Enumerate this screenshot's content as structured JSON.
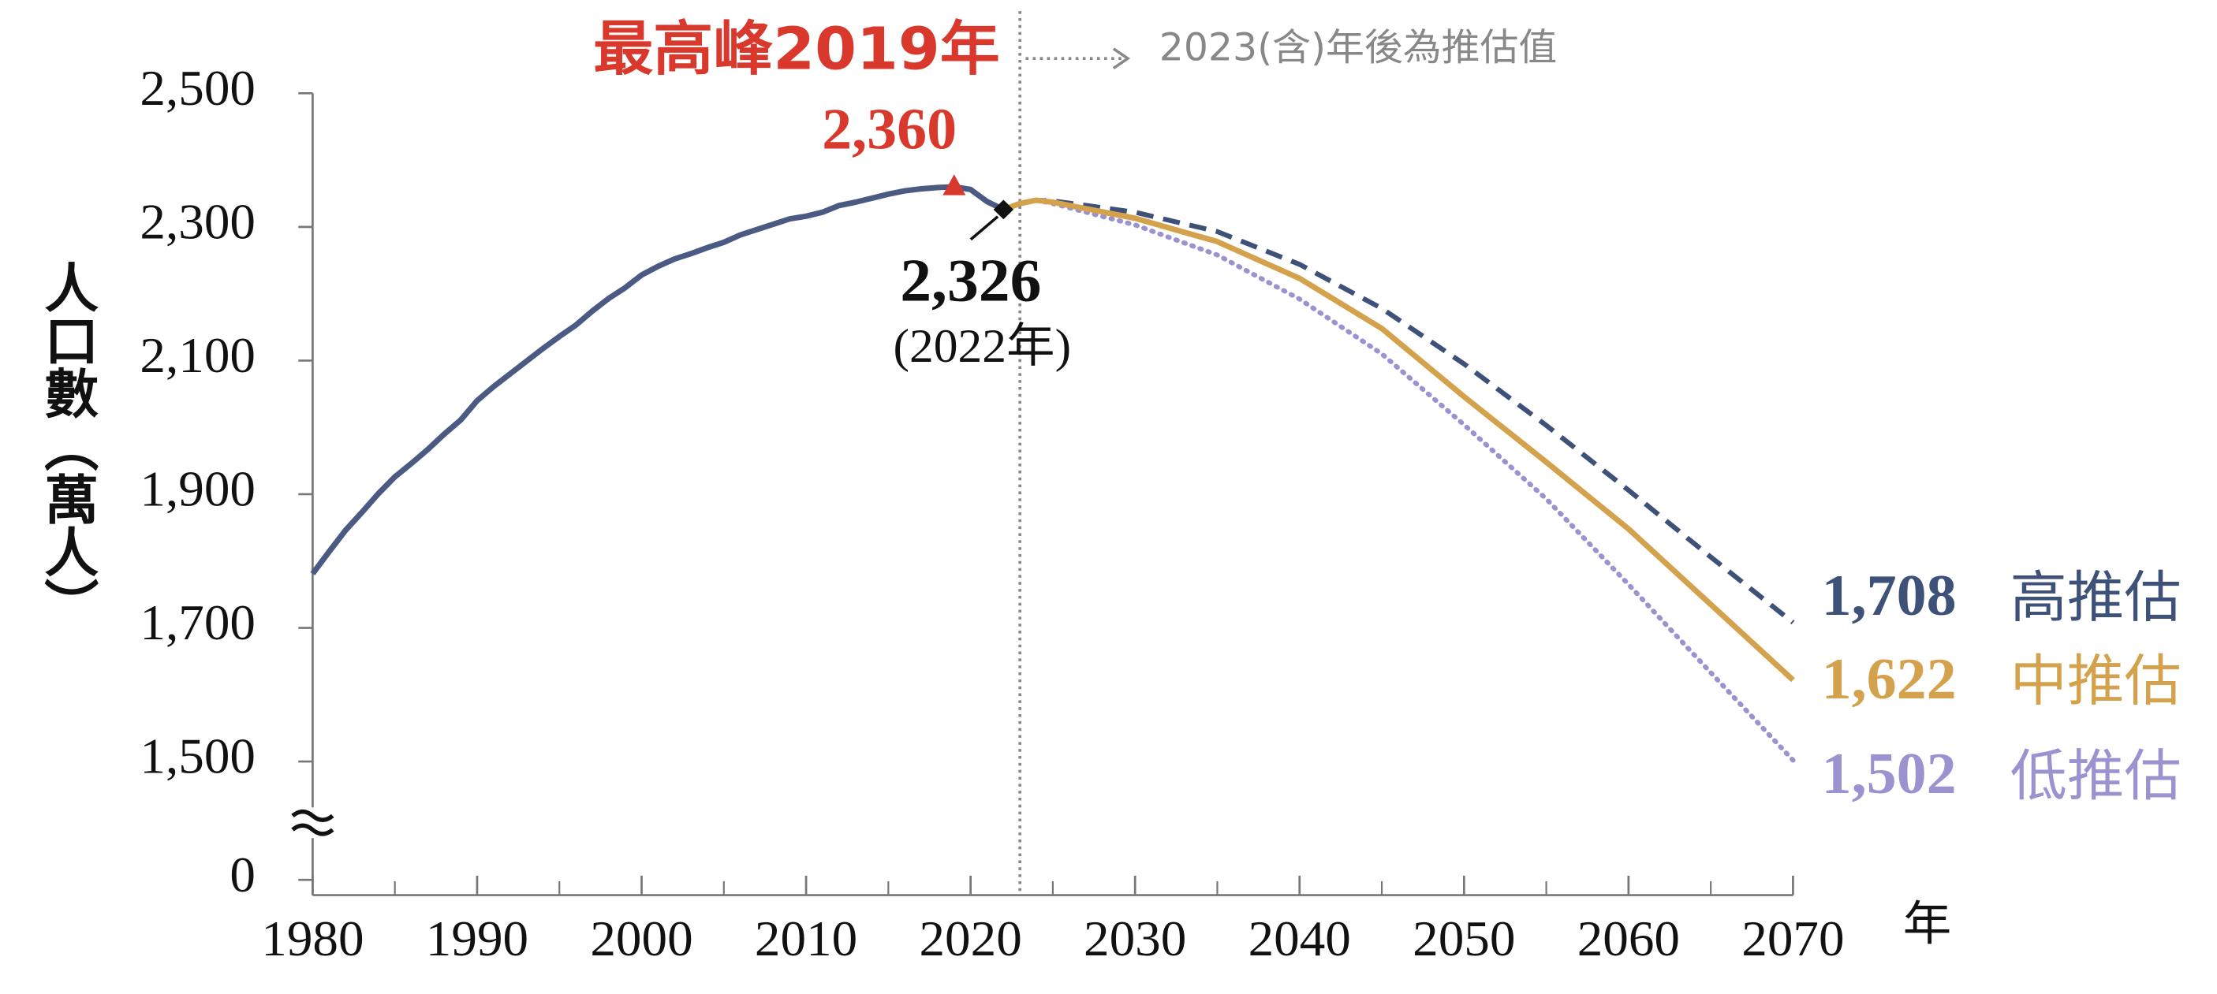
{
  "chart_data": {
    "type": "line",
    "ylabel": "人口數（萬人）",
    "xlabel": "年",
    "xlim": [
      1980,
      2070
    ],
    "xticks": [
      1980,
      1990,
      2000,
      2010,
      2020,
      2030,
      2040,
      2050,
      2060,
      2070
    ],
    "ylim": [
      1500,
      2500
    ],
    "axis_break": true,
    "yticks": [
      0,
      {
        "value": 1500,
        "label": "1,500"
      },
      {
        "value": 1700,
        "label": "1,700"
      },
      {
        "value": 1900,
        "label": "1,900"
      },
      {
        "value": 2100,
        "label": "2,100"
      },
      {
        "value": 2300,
        "label": "2,300"
      },
      {
        "value": 2500,
        "label": "2,500"
      }
    ],
    "projection_start": 2023,
    "projection_note": "2023(含)年後為推估值",
    "peak": {
      "title": "最高峰2019年",
      "label": "2,360",
      "index": 39,
      "color": "#d9382c"
    },
    "latest": {
      "label": "2,326",
      "sublabel": "(2022年)",
      "index": 42
    },
    "history": {
      "color": "#4a5a82",
      "x": [
        1980,
        1981,
        1982,
        1983,
        1984,
        1985,
        1986,
        1987,
        1988,
        1989,
        1990,
        1991,
        1992,
        1993,
        1994,
        1995,
        1996,
        1997,
        1998,
        1999,
        2000,
        2001,
        2002,
        2003,
        2004,
        2005,
        2006,
        2007,
        2008,
        2009,
        2010,
        2011,
        2012,
        2013,
        2014,
        2015,
        2016,
        2017,
        2018,
        2019,
        2020,
        2021,
        2022
      ],
      "values": [
        1781,
        1814,
        1846,
        1873,
        1901,
        1926,
        1946,
        1967,
        1990,
        2011,
        2040,
        2061,
        2080,
        2099,
        2118,
        2136,
        2153,
        2174,
        2193,
        2209,
        2228,
        2241,
        2252,
        2260,
        2269,
        2277,
        2288,
        2296,
        2304,
        2312,
        2316,
        2322,
        2332,
        2337,
        2343,
        2349,
        2354,
        2357,
        2359,
        2360,
        2356,
        2338,
        2326
      ]
    },
    "series": [
      {
        "name": "高推估",
        "color": "#3e5179",
        "style": "dashed",
        "value_label": "1,708",
        "x": [
          2022,
          2023,
          2024,
          2025,
          2030,
          2035,
          2040,
          2045,
          2050,
          2055,
          2060,
          2065,
          2070
        ],
        "values": [
          2326,
          2335,
          2340,
          2339,
          2322,
          2293,
          2244,
          2178,
          2095,
          2003,
          1906,
          1806,
          1708
        ]
      },
      {
        "name": "中推估",
        "color": "#d4a24c",
        "style": "solid",
        "value_label": "1,622",
        "x": [
          2022,
          2023,
          2024,
          2025,
          2030,
          2035,
          2040,
          2045,
          2050,
          2055,
          2060,
          2065,
          2070
        ],
        "values": [
          2326,
          2335,
          2340,
          2337,
          2313,
          2278,
          2223,
          2148,
          2046,
          1948,
          1848,
          1735,
          1622
        ]
      },
      {
        "name": "低推估",
        "color": "#9b93d0",
        "style": "dotted",
        "value_label": "1,502",
        "x": [
          2022,
          2023,
          2024,
          2025,
          2030,
          2035,
          2040,
          2045,
          2050,
          2055,
          2060,
          2065,
          2070
        ],
        "values": [
          2326,
          2335,
          2340,
          2335,
          2303,
          2258,
          2192,
          2110,
          2004,
          1893,
          1765,
          1633,
          1502
        ]
      }
    ]
  }
}
